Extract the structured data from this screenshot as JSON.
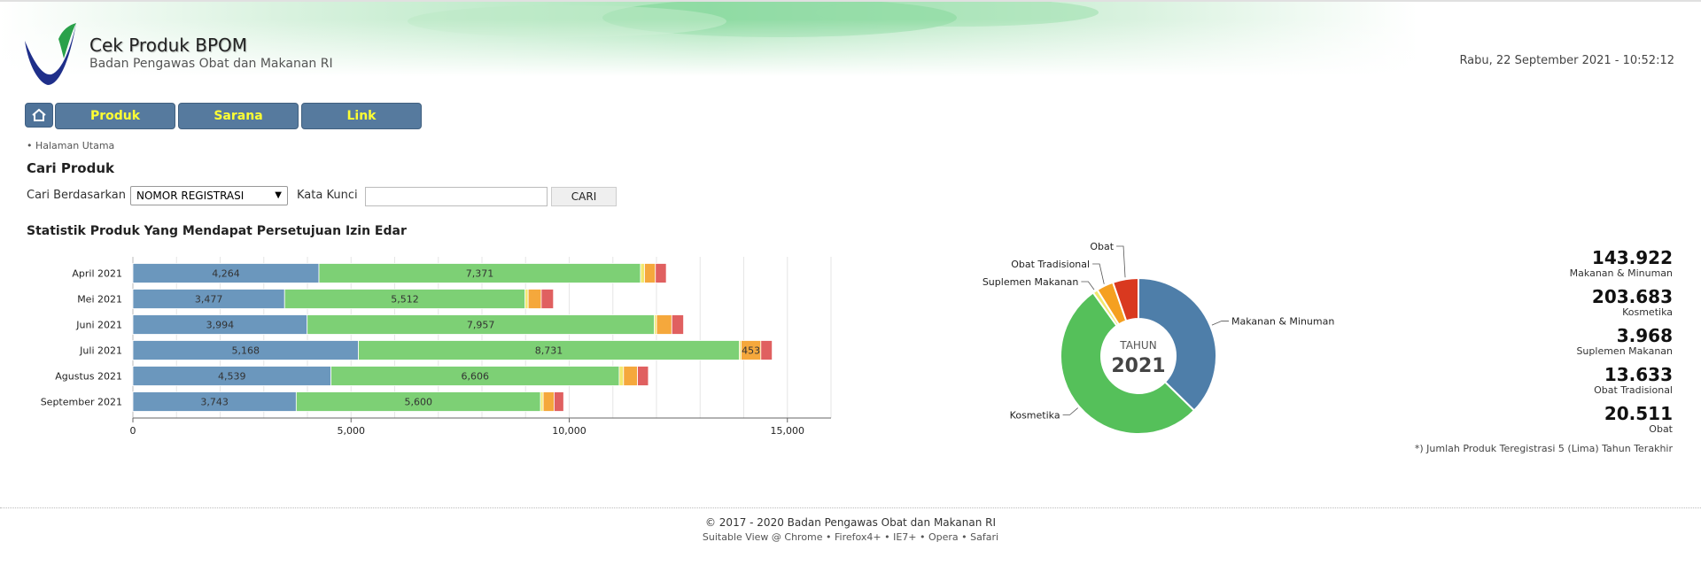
{
  "header": {
    "title": "Cek Produk BPOM",
    "subtitle": "Badan Pengawas Obat dan Makanan RI",
    "datetime": "Rabu, 22 September 2021 - 10:52:12"
  },
  "nav": {
    "home_icon": "home-icon",
    "items": [
      {
        "label": "Produk"
      },
      {
        "label": "Sarana"
      },
      {
        "label": "Link"
      }
    ]
  },
  "breadcrumb": "• Halaman Utama",
  "search": {
    "title": "Cari Produk",
    "by_label": "Cari Berdasarkan",
    "by_selected": "NOMOR REGISTRASI",
    "keyword_label": "Kata Kunci",
    "keyword_value": "",
    "button": "CARI"
  },
  "stats": {
    "title": "Statistik Produk Yang Mendapat Persetujuan Izin Edar",
    "note": "*) Jumlah Produk Teregistrasi 5 (Lima) Tahun Terakhir",
    "totals": [
      {
        "value": "143.922",
        "label": "Makanan & Minuman"
      },
      {
        "value": "203.683",
        "label": "Kosmetika"
      },
      {
        "value": "3.968",
        "label": "Suplemen Makanan"
      },
      {
        "value": "13.633",
        "label": "Obat Tradisional"
      },
      {
        "value": "20.511",
        "label": "Obat"
      }
    ]
  },
  "chart_data": [
    {
      "type": "bar",
      "orientation": "horizontal",
      "stacked": true,
      "categories": [
        "April 2021",
        "Mei 2021",
        "Juni 2021",
        "Juli 2021",
        "Agustus 2021",
        "September 2021"
      ],
      "series": [
        {
          "name": "Makanan & Minuman",
          "color": "#6b97bd",
          "values": [
            4264,
            3477,
            3994,
            5168,
            4539,
            3743
          ]
        },
        {
          "name": "Kosmetika",
          "color": "#7dd075",
          "values": [
            7371,
            5512,
            7957,
            8731,
            6606,
            5600
          ]
        },
        {
          "name": "Suplemen Makanan",
          "color": "#f2e86e",
          "values": [
            90,
            70,
            50,
            40,
            100,
            60
          ]
        },
        {
          "name": "Obat Tradisional",
          "color": "#f5a83c",
          "values": [
            250,
            300,
            350,
            453,
            320,
            250
          ]
        },
        {
          "name": "Obat",
          "color": "#e06060",
          "values": [
            250,
            280,
            270,
            260,
            250,
            220
          ]
        }
      ],
      "data_labels": [
        [
          "4,264",
          "7,371",
          "",
          "",
          ""
        ],
        [
          "3,477",
          "5,512",
          "",
          "",
          ""
        ],
        [
          "3,994",
          "7,957",
          "",
          "",
          ""
        ],
        [
          "5,168",
          "8,731",
          "",
          "453",
          ""
        ],
        [
          "4,539",
          "6,606",
          "",
          "",
          ""
        ],
        [
          "3,743",
          "5,600",
          "",
          "",
          ""
        ]
      ],
      "xticks": [
        "0",
        "5,000",
        "10,000",
        "15,000"
      ],
      "xtick_values": [
        0,
        5000,
        10000,
        15000
      ],
      "xlim": [
        0,
        16000
      ],
      "grid": true
    },
    {
      "type": "pie",
      "donut": true,
      "center_label": "TAHUN",
      "center_value": "2021",
      "slices": [
        {
          "name": "Makanan & Minuman",
          "value": 143922,
          "color": "#4e7ea9"
        },
        {
          "name": "Kosmetika",
          "value": 203683,
          "color": "#55c05a"
        },
        {
          "name": "Suplemen Makanan",
          "value": 3968,
          "color": "#f2e86e"
        },
        {
          "name": "Obat Tradisional",
          "value": 13633,
          "color": "#f5a020"
        },
        {
          "name": "Obat",
          "value": 20511,
          "color": "#d9391f"
        }
      ]
    }
  ],
  "footer": {
    "copyright": "© 2017 - 2020  Badan Pengawas Obat dan Makanan RI",
    "compat": "Suitable View @ Chrome • Firefox4+ • IE7+ • Opera • Safari"
  }
}
